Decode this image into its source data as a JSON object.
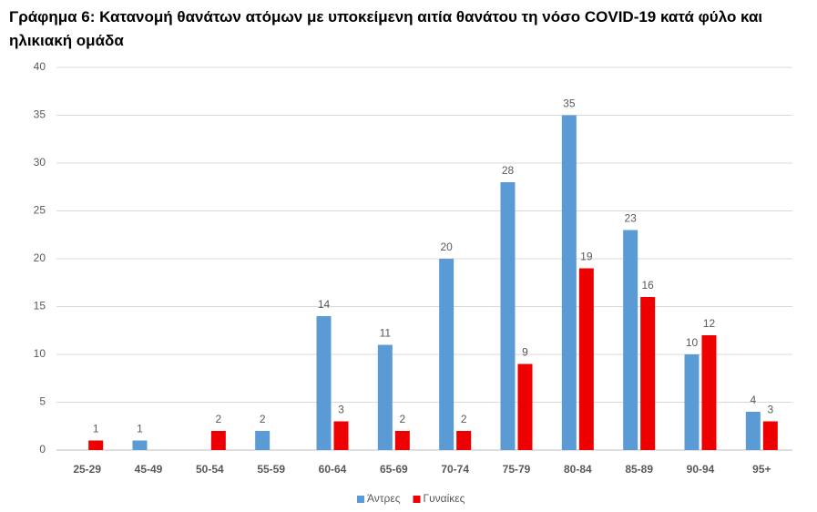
{
  "chart_data": {
    "type": "bar",
    "title": "Γράφημα 6: Κατανομή θανάτων ατόμων με υποκείμενη αιτία θανάτου τη νόσο COVID-19 κατά φύλο και ηλικιακή ομάδα",
    "categories": [
      "25-29",
      "45-49",
      "50-54",
      "55-59",
      "60-64",
      "65-69",
      "70-74",
      "75-79",
      "80-84",
      "85-89",
      "90-94",
      "95+"
    ],
    "series": [
      {
        "name": "Άντρες",
        "color": "#5b9bd5",
        "values": [
          null,
          1,
          null,
          2,
          14,
          11,
          20,
          28,
          35,
          23,
          10,
          4
        ]
      },
      {
        "name": "Γυναίκες",
        "color": "#ee0000",
        "values": [
          1,
          null,
          2,
          null,
          3,
          2,
          2,
          9,
          19,
          16,
          12,
          3
        ]
      }
    ],
    "ylim": [
      0,
      40
    ],
    "yticks": [
      0,
      5,
      10,
      15,
      20,
      25,
      30,
      35,
      40
    ],
    "grid": true,
    "legend": "bottom"
  }
}
